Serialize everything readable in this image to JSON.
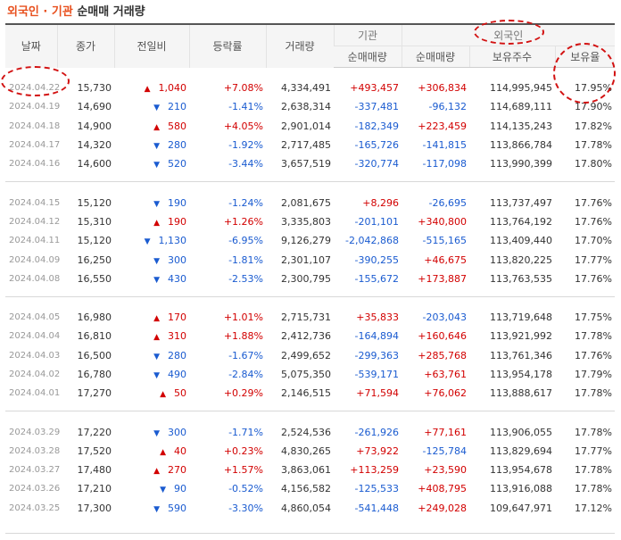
{
  "title": {
    "part1": "외국인",
    "sep": " · ",
    "part2": "기관",
    "part3": " 순매매 거래량"
  },
  "header": {
    "date": "날짜",
    "close": "종가",
    "change": "전일비",
    "rate": "등락률",
    "volume": "거래량",
    "institution": "기관",
    "foreign": "외국인",
    "inst_net": "순매매량",
    "for_net": "순매매량",
    "for_hold": "보유주수",
    "for_ratio": "보유율"
  },
  "groups": [
    [
      {
        "date": "2024.04.22",
        "close": "15,730",
        "dir": "up",
        "chg": "1,040",
        "rate": "+7.08%",
        "vol": "4,334,491",
        "inst": "+493,457",
        "for": "+306,834",
        "hold": "114,995,945",
        "ratio": "17.95%"
      },
      {
        "date": "2024.04.19",
        "close": "14,690",
        "dir": "down",
        "chg": "210",
        "rate": "-1.41%",
        "vol": "2,638,314",
        "inst": "-337,481",
        "for": "-96,132",
        "hold": "114,689,111",
        "ratio": "17.90%"
      },
      {
        "date": "2024.04.18",
        "close": "14,900",
        "dir": "up",
        "chg": "580",
        "rate": "+4.05%",
        "vol": "2,901,014",
        "inst": "-182,349",
        "for": "+223,459",
        "hold": "114,135,243",
        "ratio": "17.82%"
      },
      {
        "date": "2024.04.17",
        "close": "14,320",
        "dir": "down",
        "chg": "280",
        "rate": "-1.92%",
        "vol": "2,717,485",
        "inst": "-165,726",
        "for": "-141,815",
        "hold": "113,866,784",
        "ratio": "17.78%"
      },
      {
        "date": "2024.04.16",
        "close": "14,600",
        "dir": "down",
        "chg": "520",
        "rate": "-3.44%",
        "vol": "3,657,519",
        "inst": "-320,774",
        "for": "-117,098",
        "hold": "113,990,399",
        "ratio": "17.80%"
      }
    ],
    [
      {
        "date": "2024.04.15",
        "close": "15,120",
        "dir": "down",
        "chg": "190",
        "rate": "-1.24%",
        "vol": "2,081,675",
        "inst": "+8,296",
        "for": "-26,695",
        "hold": "113,737,497",
        "ratio": "17.76%"
      },
      {
        "date": "2024.04.12",
        "close": "15,310",
        "dir": "up",
        "chg": "190",
        "rate": "+1.26%",
        "vol": "3,335,803",
        "inst": "-201,101",
        "for": "+340,800",
        "hold": "113,764,192",
        "ratio": "17.76%"
      },
      {
        "date": "2024.04.11",
        "close": "15,120",
        "dir": "down",
        "chg": "1,130",
        "rate": "-6.95%",
        "vol": "9,126,279",
        "inst": "-2,042,868",
        "for": "-515,165",
        "hold": "113,409,440",
        "ratio": "17.70%"
      },
      {
        "date": "2024.04.09",
        "close": "16,250",
        "dir": "down",
        "chg": "300",
        "rate": "-1.81%",
        "vol": "2,301,107",
        "inst": "-390,255",
        "for": "+46,675",
        "hold": "113,820,225",
        "ratio": "17.77%"
      },
      {
        "date": "2024.04.08",
        "close": "16,550",
        "dir": "down",
        "chg": "430",
        "rate": "-2.53%",
        "vol": "2,300,795",
        "inst": "-155,672",
        "for": "+173,887",
        "hold": "113,763,535",
        "ratio": "17.76%"
      }
    ],
    [
      {
        "date": "2024.04.05",
        "close": "16,980",
        "dir": "up",
        "chg": "170",
        "rate": "+1.01%",
        "vol": "2,715,731",
        "inst": "+35,833",
        "for": "-203,043",
        "hold": "113,719,648",
        "ratio": "17.75%"
      },
      {
        "date": "2024.04.04",
        "close": "16,810",
        "dir": "up",
        "chg": "310",
        "rate": "+1.88%",
        "vol": "2,412,736",
        "inst": "-164,894",
        "for": "+160,646",
        "hold": "113,921,992",
        "ratio": "17.78%"
      },
      {
        "date": "2024.04.03",
        "close": "16,500",
        "dir": "down",
        "chg": "280",
        "rate": "-1.67%",
        "vol": "2,499,652",
        "inst": "-299,363",
        "for": "+285,768",
        "hold": "113,761,346",
        "ratio": "17.76%"
      },
      {
        "date": "2024.04.02",
        "close": "16,780",
        "dir": "down",
        "chg": "490",
        "rate": "-2.84%",
        "vol": "5,075,350",
        "inst": "-539,171",
        "for": "+63,761",
        "hold": "113,954,178",
        "ratio": "17.79%"
      },
      {
        "date": "2024.04.01",
        "close": "17,270",
        "dir": "up",
        "chg": "50",
        "rate": "+0.29%",
        "vol": "2,146,515",
        "inst": "+71,594",
        "for": "+76,062",
        "hold": "113,888,617",
        "ratio": "17.78%"
      }
    ],
    [
      {
        "date": "2024.03.29",
        "close": "17,220",
        "dir": "down",
        "chg": "300",
        "rate": "-1.71%",
        "vol": "2,524,536",
        "inst": "-261,926",
        "for": "+77,161",
        "hold": "113,906,055",
        "ratio": "17.78%"
      },
      {
        "date": "2024.03.28",
        "close": "17,520",
        "dir": "up",
        "chg": "40",
        "rate": "+0.23%",
        "vol": "4,830,265",
        "inst": "+73,922",
        "for": "-125,784",
        "hold": "113,829,694",
        "ratio": "17.77%"
      },
      {
        "date": "2024.03.27",
        "close": "17,480",
        "dir": "up",
        "chg": "270",
        "rate": "+1.57%",
        "vol": "3,863,061",
        "inst": "+113,259",
        "for": "+23,590",
        "hold": "113,954,678",
        "ratio": "17.78%"
      },
      {
        "date": "2024.03.26",
        "close": "17,210",
        "dir": "down",
        "chg": "90",
        "rate": "-0.52%",
        "vol": "4,156,582",
        "inst": "-125,533",
        "for": "+408,795",
        "hold": "113,916,088",
        "ratio": "17.78%"
      },
      {
        "date": "2024.03.25",
        "close": "17,300",
        "dir": "down",
        "chg": "590",
        "rate": "-3.30%",
        "vol": "4,860,054",
        "inst": "-541,448",
        "for": "+249,028",
        "hold": "109,647,971",
        "ratio": "17.12%"
      }
    ]
  ],
  "colors": {
    "up": "#d20000",
    "down": "#1a5bd0",
    "title_accent": "#e8501e",
    "annotation": "#d21111"
  }
}
